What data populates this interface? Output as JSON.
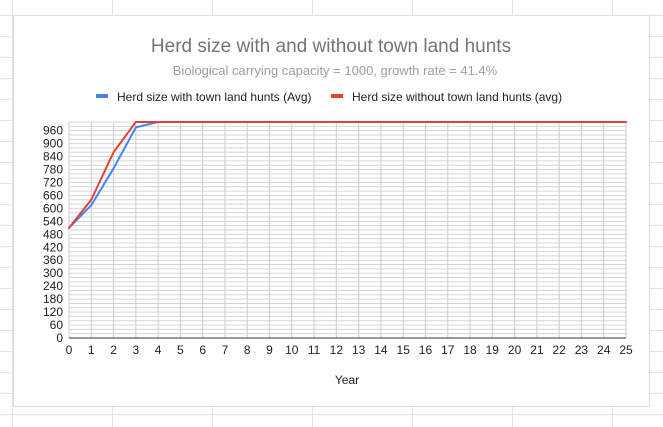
{
  "chart_data": {
    "type": "line",
    "title": "Herd size with and without town land hunts",
    "subtitle": "Biological carrying capacity = 1000, growth rate = 41.4%",
    "xlabel": "Year",
    "ylabel": "",
    "x": [
      0,
      1,
      2,
      3,
      4,
      5,
      6,
      7,
      8,
      9,
      10,
      11,
      12,
      13,
      14,
      15,
      16,
      17,
      18,
      19,
      20,
      21,
      22,
      23,
      24,
      25
    ],
    "xlim": [
      0,
      25
    ],
    "ylim": [
      0,
      1000
    ],
    "yticks": [
      0,
      60,
      120,
      180,
      240,
      300,
      360,
      420,
      480,
      540,
      600,
      660,
      720,
      780,
      840,
      900,
      960
    ],
    "grid": true,
    "minor_grid_step": 20,
    "legend_position": "top",
    "series": [
      {
        "name": "Herd size with town land hunts (Avg)",
        "color": "#4285f4",
        "values": [
          510,
          615,
          785,
          975,
          1000,
          1000,
          1000,
          1000,
          1000,
          1000,
          1000,
          1000,
          1000,
          1000,
          1000,
          1000,
          1000,
          1000,
          1000,
          1000,
          1000,
          1000,
          1000,
          1000,
          1000,
          1000
        ]
      },
      {
        "name": "Herd size without town land hunts (avg)",
        "color": "#db4437",
        "values": [
          510,
          640,
          860,
          1000,
          1000,
          1000,
          1000,
          1000,
          1000,
          1000,
          1000,
          1000,
          1000,
          1000,
          1000,
          1000,
          1000,
          1000,
          1000,
          1000,
          1000,
          1000,
          1000,
          1000,
          1000,
          1000
        ]
      }
    ]
  }
}
